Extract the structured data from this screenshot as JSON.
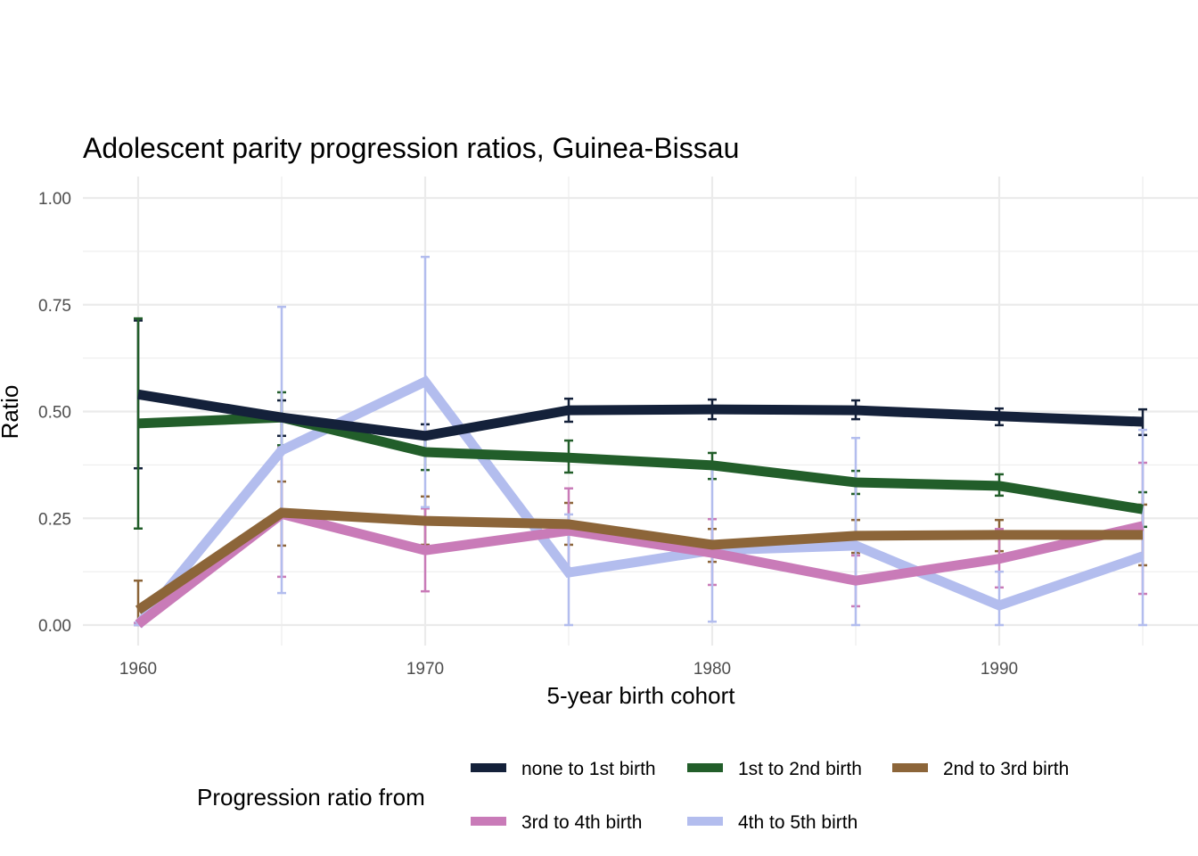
{
  "chart_data": {
    "type": "line",
    "title": "Adolescent parity progression ratios,  Guinea-Bissau",
    "xlabel": "5-year birth cohort",
    "ylabel": "Ratio",
    "xlim": [
      1958,
      1997
    ],
    "ylim": [
      0,
      1
    ],
    "x_ticks": [
      1960,
      1970,
      1980,
      1990
    ],
    "y_ticks": [
      0,
      0.25,
      0.5,
      0.75,
      1
    ],
    "y_tick_labels": [
      "0.00",
      "0.25",
      "0.50",
      "0.75",
      "1.00"
    ],
    "grid": true,
    "legend_title": "Progression ratio from",
    "legend_position": "bottom",
    "x": [
      1960,
      1965,
      1970,
      1975,
      1980,
      1985,
      1990,
      1995
    ],
    "series": [
      {
        "name": "none to 1st birth",
        "color": "#14213a",
        "values": [
          0.54,
          0.486,
          0.443,
          0.503,
          0.505,
          0.503,
          0.489,
          0.476
        ],
        "lower": [
          0.367,
          0.443,
          0.413,
          0.476,
          0.482,
          0.482,
          0.468,
          0.445
        ],
        "upper": [
          0.713,
          0.526,
          0.47,
          0.53,
          0.528,
          0.526,
          0.507,
          0.505
        ]
      },
      {
        "name": "1st to 2nd birth",
        "color": "#225e2a",
        "values": [
          0.472,
          0.486,
          0.405,
          0.392,
          0.374,
          0.334,
          0.326,
          0.271
        ],
        "lower": [
          0.226,
          0.421,
          0.363,
          0.357,
          0.342,
          0.307,
          0.303,
          0.23
        ],
        "upper": [
          0.718,
          0.545,
          0.447,
          0.432,
          0.403,
          0.361,
          0.353,
          0.311
        ]
      },
      {
        "name": "2nd to 3rd birth",
        "color": "#8c6539",
        "values": [
          0.035,
          0.263,
          0.244,
          0.236,
          0.188,
          0.209,
          0.211,
          0.211
        ],
        "lower": [
          0,
          0.186,
          0.188,
          0.188,
          0.148,
          0.169,
          0.173,
          0.14
        ],
        "upper": [
          0.104,
          0.336,
          0.301,
          0.286,
          0.225,
          0.246,
          0.246,
          0.282
        ]
      },
      {
        "name": "3rd to 4th birth",
        "color": "#c97bb8",
        "values": [
          0.002,
          0.26,
          0.175,
          0.221,
          0.169,
          0.104,
          0.155,
          0.232
        ],
        "lower": [
          0,
          0.113,
          0.079,
          0.132,
          0.094,
          0.044,
          0.088,
          0.073
        ],
        "upper": [
          0.005,
          0.415,
          0.273,
          0.32,
          0.248,
          0.163,
          0.225,
          0.38
        ]
      },
      {
        "name": "4th to 5th birth",
        "color": "#b3bdee",
        "values": [
          0,
          0.409,
          0.57,
          0.123,
          0.175,
          0.186,
          0.046,
          0.161
        ],
        "lower": [
          0,
          0.075,
          0.276,
          0,
          0.008,
          0,
          0,
          0
        ],
        "upper": [
          0,
          0.745,
          0.862,
          0.259,
          0.367,
          0.438,
          0.125,
          0.457
        ]
      }
    ]
  }
}
